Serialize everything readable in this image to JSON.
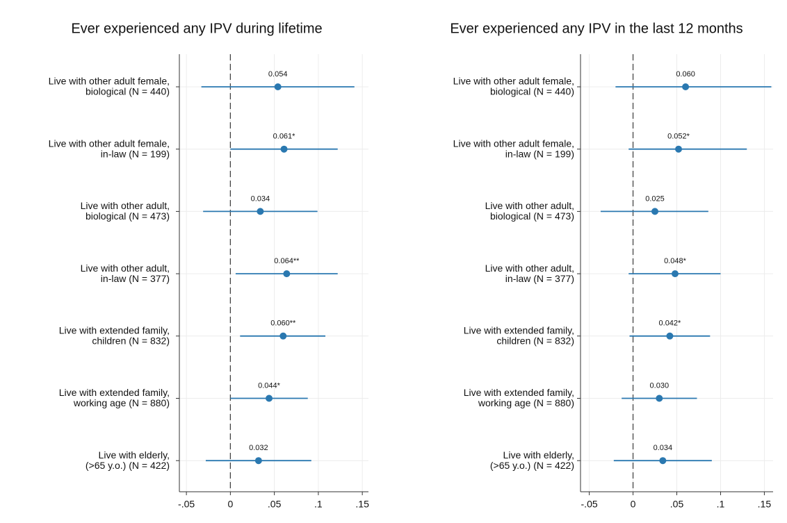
{
  "chart_data": [
    {
      "type": "coefficient",
      "title": "Ever experienced any IPV during lifetime",
      "categories": [
        [
          "Live with other adult female,",
          "biological (N = 440)"
        ],
        [
          "Live with other adult female,",
          "in-law (N = 199)"
        ],
        [
          "Live with other adult,",
          "biological (N = 473)"
        ],
        [
          "Live with other adult,",
          "in-law (N = 377)"
        ],
        [
          "Live with extended family,",
          "children (N = 832)"
        ],
        [
          "Live with extended family,",
          "working age (N = 880)"
        ],
        [
          "Live with elderly,",
          "(>65 y.o.) (N = 422)"
        ]
      ],
      "values": [
        0.054,
        0.061,
        0.034,
        0.064,
        0.06,
        0.044,
        0.032
      ],
      "value_labels": [
        "0.054",
        "0.061*",
        "0.034",
        "0.064**",
        "0.060**",
        "0.044*",
        "0.032"
      ],
      "ci_lower": [
        -0.033,
        0.0,
        -0.031,
        0.006,
        0.011,
        0.0,
        -0.028
      ],
      "ci_upper": [
        0.141,
        0.122,
        0.099,
        0.122,
        0.108,
        0.088,
        0.092
      ],
      "color": "#2a78b0",
      "xlim": [
        -0.058,
        0.157
      ],
      "xticks": [
        {
          "value": -0.05,
          "label": "-.05"
        },
        0,
        {
          "value": 0.05,
          "label": ".05"
        },
        {
          "value": 0.1,
          "label": ".1"
        },
        {
          "value": 0.15,
          "label": ".15"
        }
      ],
      "grid": true,
      "reference_line": 0
    },
    {
      "type": "coefficient",
      "title": "Ever experienced any IPV in the last 12 months",
      "categories": [
        [
          "Live with other adult female,",
          "biological (N = 440)"
        ],
        [
          "Live with other adult female,",
          "in-law (N = 199)"
        ],
        [
          "Live with other adult,",
          "biological (N = 473)"
        ],
        [
          "Live with other adult,",
          "in-law (N = 377)"
        ],
        [
          "Live with extended family,",
          "children (N = 832)"
        ],
        [
          "Live with extended family,",
          "working age (N = 880)"
        ],
        [
          "Live with elderly,",
          "(>65 y.o.) (N = 422)"
        ]
      ],
      "values": [
        0.06,
        0.052,
        0.025,
        0.048,
        0.042,
        0.03,
        0.034
      ],
      "value_labels": [
        "0.060",
        "0.052*",
        "0.025",
        "0.048*",
        "0.042*",
        "0.030",
        "0.034"
      ],
      "ci_lower": [
        -0.02,
        -0.005,
        -0.037,
        -0.005,
        -0.004,
        -0.013,
        -0.022
      ],
      "ci_upper": [
        0.158,
        0.13,
        0.086,
        0.1,
        0.088,
        0.073,
        0.09
      ],
      "color": "#2a78b0",
      "xlim": [
        -0.06,
        0.16
      ],
      "xticks": [
        {
          "value": -0.05,
          "label": "-.05"
        },
        0,
        {
          "value": 0.05,
          "label": ".05"
        },
        {
          "value": 0.1,
          "label": ".1"
        },
        {
          "value": 0.15,
          "label": ".15"
        }
      ],
      "grid": true,
      "reference_line": 0
    }
  ]
}
